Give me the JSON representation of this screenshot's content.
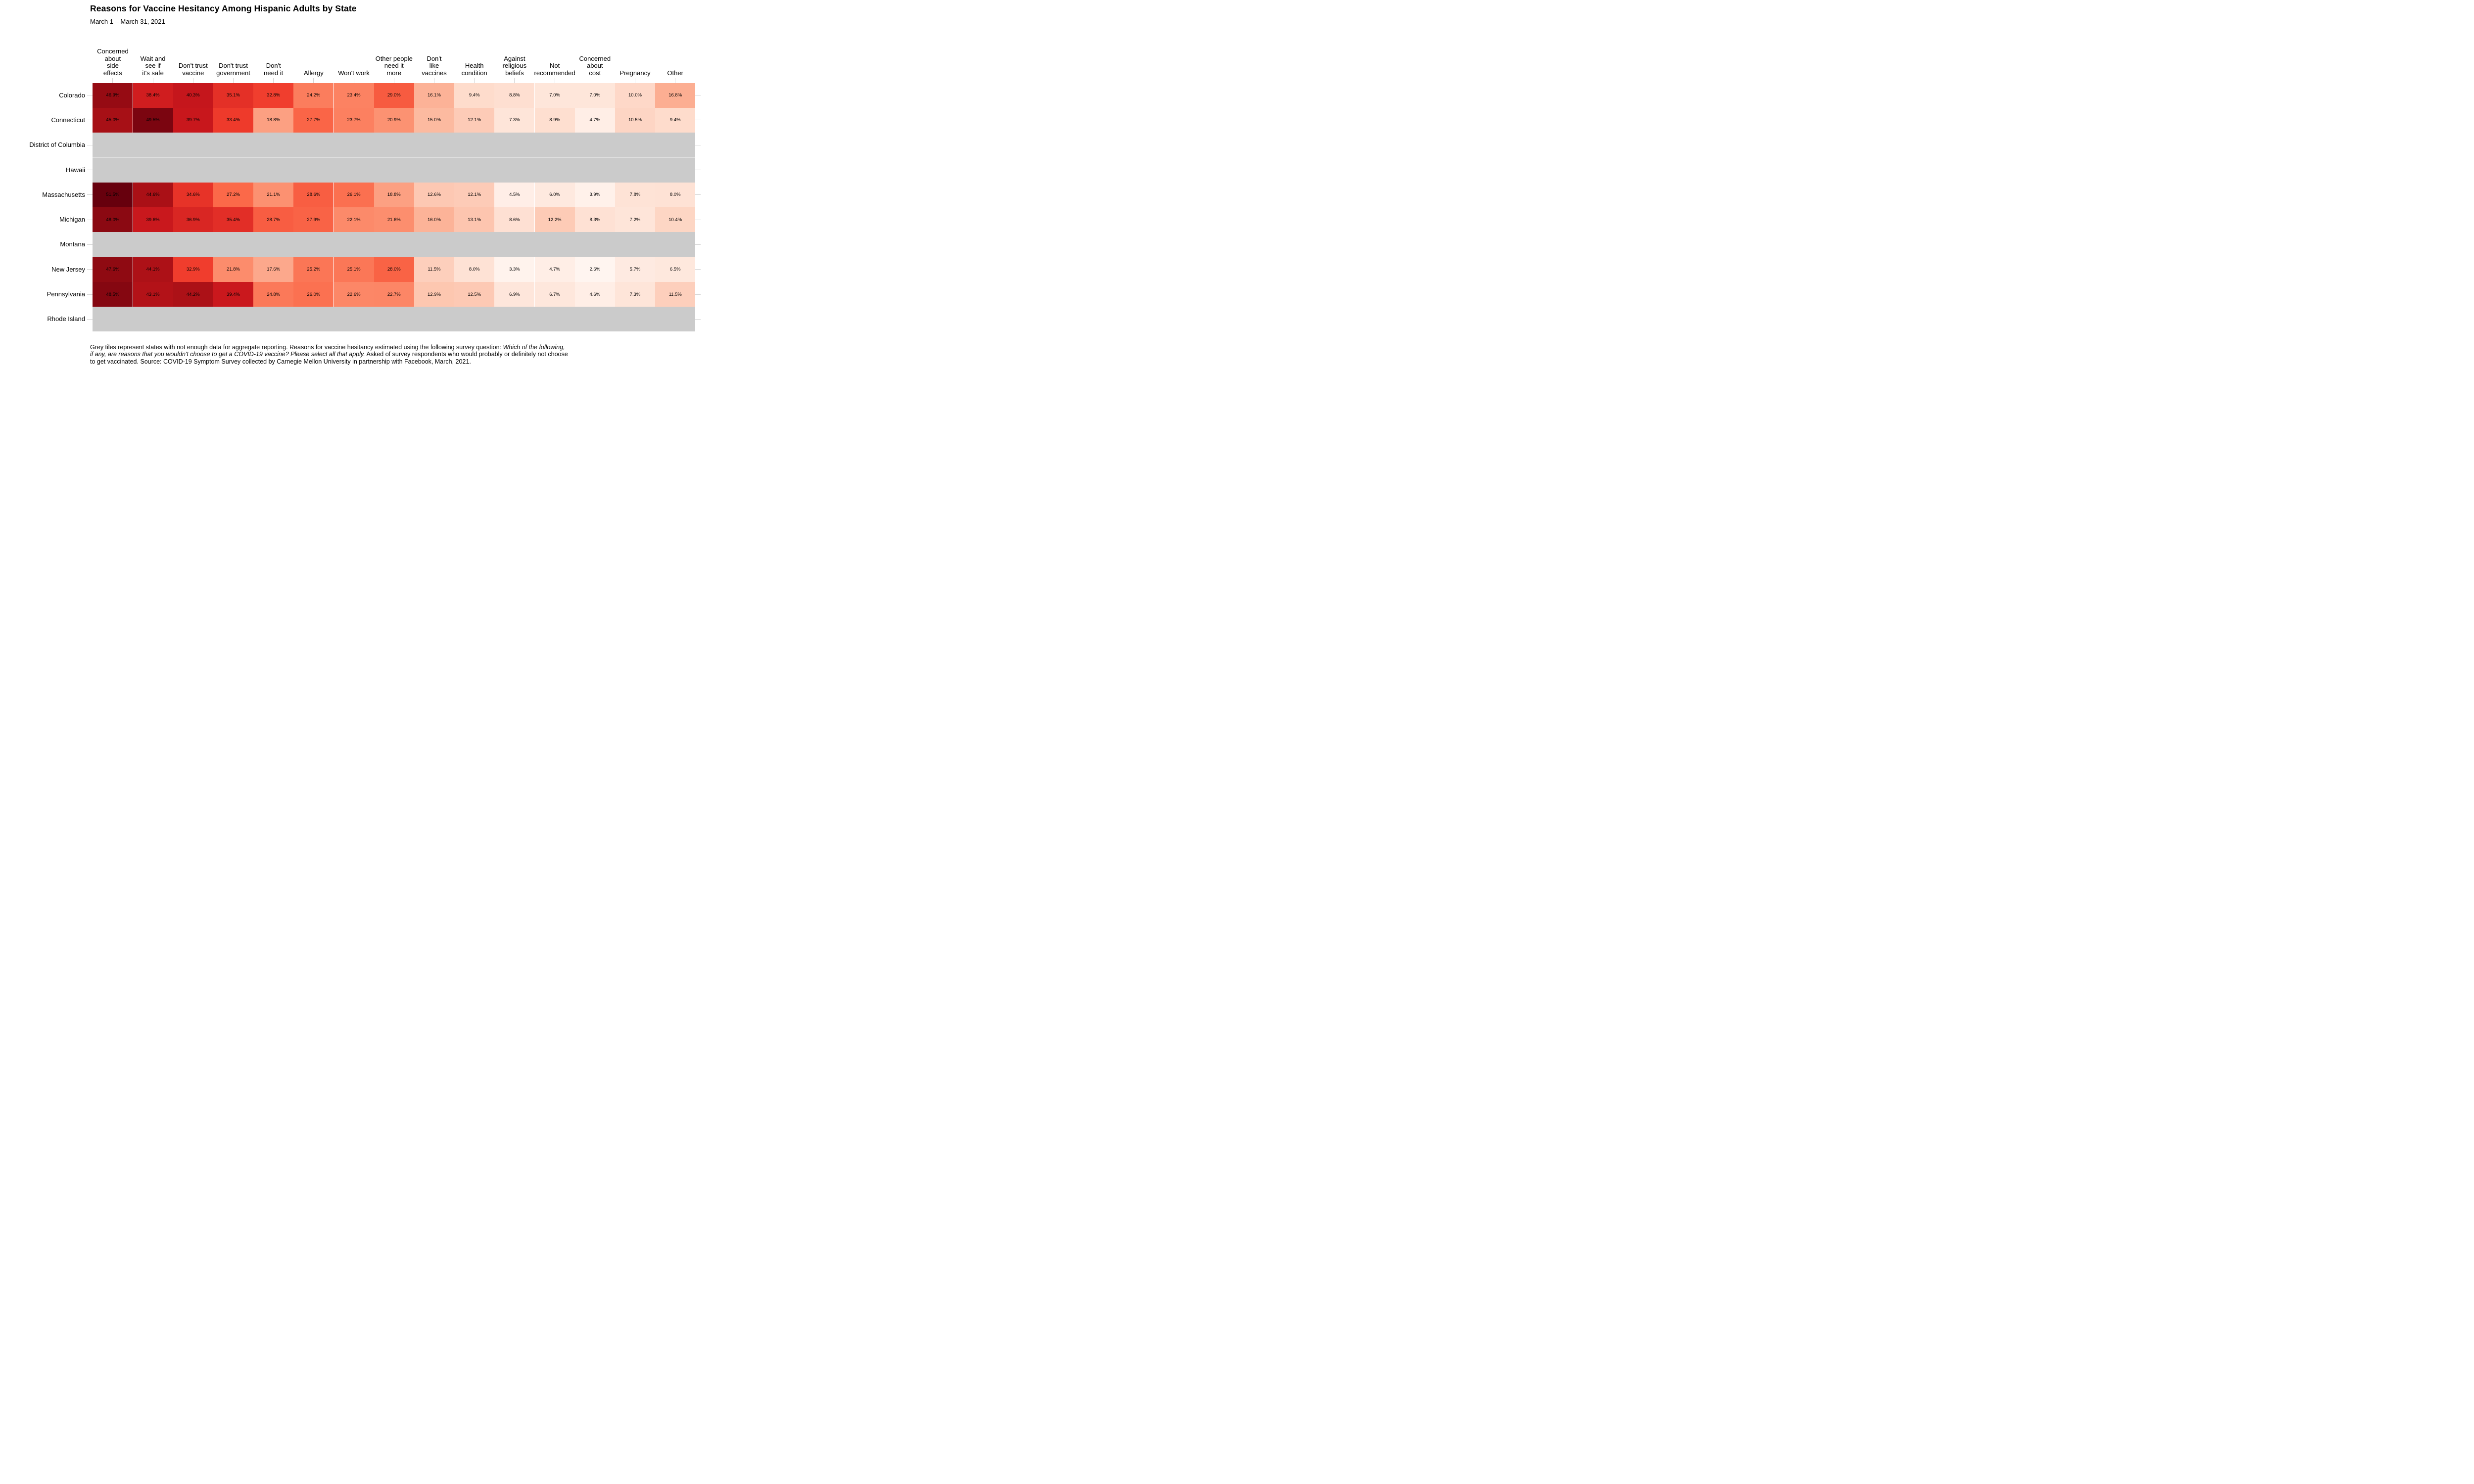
{
  "header": {
    "title": "Reasons for Vaccine Hesitancy Among Hispanic Adults by State",
    "subtitle": "March 1 – March 31, 2021"
  },
  "chart_data": {
    "type": "heatmap",
    "title": "Reasons for Vaccine Hesitancy Among Hispanic Adults by State",
    "subtitle": "March 1 – March 31, 2021",
    "value_unit": "percent",
    "columns": [
      {
        "name": "Concerned about side effects",
        "wrapped": "Concerned\nabout\nside\neffects"
      },
      {
        "name": "Wait and see if it's safe",
        "wrapped": "Wait and\nsee if\nit's safe"
      },
      {
        "name": "Don't trust vaccine",
        "wrapped": "Don't trust\nvaccine"
      },
      {
        "name": "Don't trust government",
        "wrapped": "Don't trust\ngovernment"
      },
      {
        "name": "Don't need it",
        "wrapped": "Don't\nneed it"
      },
      {
        "name": "Allergy",
        "wrapped": "Allergy"
      },
      {
        "name": "Won't work",
        "wrapped": "Won't work"
      },
      {
        "name": "Other people need it more",
        "wrapped": "Other people\nneed it\nmore"
      },
      {
        "name": "Don't like vaccines",
        "wrapped": "Don't\nlike\nvaccines"
      },
      {
        "name": "Health condition",
        "wrapped": "Health\ncondition"
      },
      {
        "name": "Against religious beliefs",
        "wrapped": "Against\nreligious\nbeliefs"
      },
      {
        "name": "Not recommended",
        "wrapped": "Not\nrecommended"
      },
      {
        "name": "Concerned about cost",
        "wrapped": "Concerned\nabout\ncost"
      },
      {
        "name": "Pregnancy",
        "wrapped": "Pregnancy"
      },
      {
        "name": "Other",
        "wrapped": "Other"
      }
    ],
    "rows": [
      "Colorado",
      "Connecticut",
      "District of Columbia",
      "Hawaii",
      "Massachusetts",
      "Michigan",
      "Montana",
      "New Jersey",
      "Pennsylvania",
      "Rhode Island"
    ],
    "values": [
      [
        46.9,
        38.4,
        40.3,
        35.1,
        32.8,
        24.2,
        23.4,
        29.0,
        16.1,
        9.4,
        8.8,
        7.0,
        7.0,
        10.0,
        16.8
      ],
      [
        45.0,
        49.5,
        39.7,
        33.4,
        18.8,
        27.7,
        23.7,
        20.9,
        15.0,
        12.1,
        7.3,
        8.9,
        4.7,
        10.5,
        9.4
      ],
      null,
      null,
      [
        51.5,
        44.6,
        34.6,
        27.2,
        21.1,
        28.6,
        26.1,
        18.8,
        12.6,
        12.1,
        4.5,
        6.0,
        3.9,
        7.8,
        8.0
      ],
      [
        48.0,
        39.6,
        36.9,
        35.4,
        28.7,
        27.9,
        22.1,
        21.6,
        16.0,
        13.1,
        8.6,
        12.2,
        8.3,
        7.2,
        10.4
      ],
      null,
      [
        47.6,
        44.1,
        32.9,
        21.8,
        17.6,
        25.2,
        25.1,
        28.0,
        11.5,
        8.0,
        3.3,
        4.7,
        2.6,
        5.7,
        6.5
      ],
      [
        48.5,
        43.1,
        44.2,
        39.4,
        24.8,
        26.0,
        22.6,
        22.7,
        12.9,
        12.5,
        6.9,
        6.7,
        4.6,
        7.3,
        11.5
      ],
      null
    ],
    "no_data_rows": [
      "District of Columbia",
      "Hawaii",
      "Montana",
      "Rhode Island"
    ],
    "color_scale": {
      "palette": [
        "#fff5f0",
        "#fee0d2",
        "#fcbba1",
        "#fc9272",
        "#fb6a4a",
        "#ef3b2c",
        "#cb181d",
        "#a50f15",
        "#67000d"
      ],
      "domain": [
        2.6,
        51.5
      ],
      "na_color": "#cbcbcb"
    },
    "legend": "none",
    "grid": "off"
  },
  "footnote": {
    "lines": [
      [
        {
          "text": "Grey tiles represent states with not enough data for aggregate reporting. Reasons for vaccine hesitancy estimated using the following survey question: ",
          "italic": false
        },
        {
          "text": "Which of the following,",
          "italic": true
        }
      ],
      [
        {
          "text": "if any, are reasons that you wouldn't choose to get a COVID-19 vaccine? Please select all that apply.",
          "italic": true
        },
        {
          "text": " Asked of survey respondents who would probably or definitely not choose",
          "italic": false
        }
      ],
      [
        {
          "text": "to get vaccinated. Source: COVID-19 Symptom Survey collected by Carnegie Mellon University in partnership with Facebook, March, 2021.",
          "italic": false
        }
      ]
    ]
  }
}
